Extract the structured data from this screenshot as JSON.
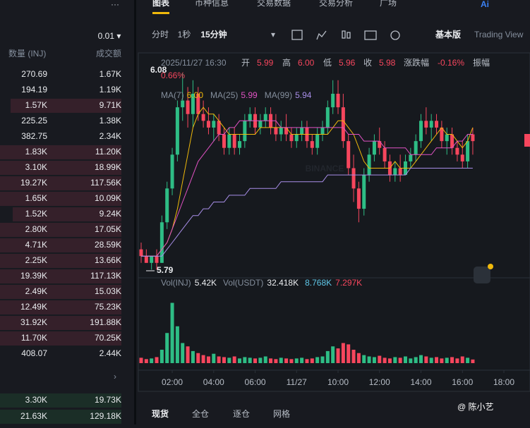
{
  "header": {
    "menu": "···",
    "tabs": [
      "图表",
      "币种信息",
      "交易数据",
      "交易分析",
      "广场"
    ],
    "ai": "Ai"
  },
  "toolbar": {
    "intervals": [
      "分时",
      "1秒",
      "15分钟"
    ],
    "dropdown": "▾",
    "modes": [
      "基本版",
      "Trading View"
    ]
  },
  "order_book": {
    "precision": "0.01 ▾",
    "columns": [
      "数量 (INJ)",
      "成交额"
    ],
    "asks": [
      [
        "270.69",
        "1.67K"
      ],
      [
        "194.19",
        "1.19K"
      ],
      [
        "1.57K",
        "9.71K"
      ],
      [
        "225.25",
        "1.38K"
      ],
      [
        "382.75",
        "2.34K"
      ],
      [
        "1.83K",
        "11.20K"
      ],
      [
        "3.10K",
        "18.99K"
      ],
      [
        "19.27K",
        "117.56K"
      ],
      [
        "1.65K",
        "10.09K"
      ],
      [
        "1.52K",
        "9.24K"
      ],
      [
        "2.80K",
        "17.05K"
      ],
      [
        "4.71K",
        "28.59K"
      ],
      [
        "2.25K",
        "13.66K"
      ],
      [
        "19.39K",
        "117.13K"
      ],
      [
        "2.49K",
        "15.03K"
      ],
      [
        "12.49K",
        "75.23K"
      ],
      [
        "31.92K",
        "191.88K"
      ],
      [
        "11.70K",
        "70.25K"
      ],
      [
        "408.07",
        "2.44K"
      ]
    ],
    "more": "›",
    "bids": [
      [
        "3.30K",
        "19.73K"
      ],
      [
        "21.63K",
        "129.18K"
      ]
    ]
  },
  "chart_data": {
    "type": "candlestick",
    "info": {
      "time": "2025/11/27 16:30",
      "open_label": "开",
      "open": "5.99",
      "high_label": "高",
      "high": "6.00",
      "low_label": "低",
      "low": "5.96",
      "close_label": "收",
      "close": "5.98",
      "change_label": "涨跌幅",
      "change": "-0.16%",
      "amp_label": "振幅",
      "amp": "0.66%"
    },
    "ma_legend": [
      {
        "name": "MA(7)",
        "value": "6.00",
        "color": "#f0b90b"
      },
      {
        "name": "MA(25)",
        "value": "5.99",
        "color": "#e052c3"
      },
      {
        "name": "MA(99)",
        "value": "5.94",
        "color": "#a88ee8"
      }
    ],
    "annotations": {
      "max": "6.08",
      "min": "5.79",
      "watermark": "BINANCE"
    },
    "x": [
      0.5,
      0.75,
      1,
      1.25,
      1.5,
      1.75,
      2,
      2.25,
      2.5,
      2.75,
      3,
      3.25,
      3.5,
      3.75,
      4,
      4.25,
      4.5,
      4.75,
      5,
      5.25,
      5.5,
      5.75,
      6,
      6.25,
      6.5,
      6.75,
      7,
      7.25,
      7.5,
      7.75,
      8,
      8.25,
      8.5,
      8.75,
      9,
      9.25,
      9.5,
      9.75,
      10,
      10.25,
      10.5,
      10.75,
      11,
      11.25,
      11.5,
      11.75,
      12,
      12.25,
      12.5,
      12.75,
      13,
      13.25,
      13.5,
      13.75,
      14,
      14.25,
      14.5,
      14.75,
      15,
      15.25,
      15.5,
      15.75,
      16,
      16.25,
      16.5
    ],
    "xlim": [
      0.33,
      19.26
    ],
    "xticks": [
      {
        "value": 2,
        "label": "02:00"
      },
      {
        "value": 4,
        "label": "04:00"
      },
      {
        "value": 6,
        "label": "06:00"
      },
      {
        "value": 8,
        "label": "11/27"
      },
      {
        "value": 10,
        "label": "10:00"
      },
      {
        "value": 12,
        "label": "12:00"
      },
      {
        "value": 14,
        "label": "14:00"
      },
      {
        "value": 16,
        "label": "16:00"
      },
      {
        "value": 18,
        "label": "18:00"
      }
    ],
    "ylim": [
      5.78,
      6.1
    ],
    "ohlc": [
      [
        5.82,
        5.83,
        5.8,
        5.81
      ],
      [
        5.81,
        5.82,
        5.8,
        5.8
      ],
      [
        5.8,
        5.81,
        5.79,
        5.81
      ],
      [
        5.81,
        5.82,
        5.79,
        5.8
      ],
      [
        5.8,
        5.87,
        5.8,
        5.86
      ],
      [
        5.86,
        5.92,
        5.85,
        5.91
      ],
      [
        5.91,
        5.97,
        5.9,
        5.96
      ],
      [
        5.96,
        6.04,
        5.95,
        6.03
      ],
      [
        6.03,
        6.08,
        6.01,
        6.04
      ],
      [
        6.04,
        6.06,
        6.0,
        6.02
      ],
      [
        6.02,
        6.07,
        6.0,
        6.05
      ],
      [
        6.05,
        6.06,
        6.01,
        6.02
      ],
      [
        6.02,
        6.04,
        6.0,
        6.01
      ],
      [
        6.01,
        6.03,
        5.99,
        6.0
      ],
      [
        6.0,
        6.02,
        5.98,
        6.01
      ],
      [
        6.01,
        6.02,
        5.98,
        5.99
      ],
      [
        5.99,
        6.0,
        5.96,
        5.97
      ],
      [
        5.97,
        6.0,
        5.96,
        5.99
      ],
      [
        5.99,
        6.0,
        5.96,
        5.97
      ],
      [
        5.97,
        5.99,
        5.96,
        5.98
      ],
      [
        5.98,
        6.02,
        5.97,
        6.01
      ],
      [
        6.01,
        6.03,
        6.0,
        6.02
      ],
      [
        6.02,
        6.03,
        5.99,
        6.0
      ],
      [
        6.0,
        6.02,
        5.99,
        6.01
      ],
      [
        6.01,
        6.03,
        6.0,
        6.02
      ],
      [
        6.02,
        6.03,
        5.99,
        6.0
      ],
      [
        6.0,
        6.02,
        5.98,
        5.99
      ],
      [
        5.99,
        6.01,
        5.98,
        6.0
      ],
      [
        6.0,
        6.02,
        5.98,
        5.99
      ],
      [
        5.99,
        6.0,
        5.97,
        5.98
      ],
      [
        5.98,
        6.0,
        5.97,
        5.99
      ],
      [
        5.99,
        6.01,
        5.98,
        6.0
      ],
      [
        6.0,
        6.01,
        5.97,
        5.98
      ],
      [
        5.98,
        5.99,
        5.96,
        5.97
      ],
      [
        5.97,
        6.0,
        5.96,
        5.99
      ],
      [
        5.99,
        6.01,
        5.98,
        6.0
      ],
      [
        6.0,
        6.04,
        5.99,
        6.03
      ],
      [
        6.03,
        6.07,
        6.02,
        6.05
      ],
      [
        6.05,
        6.07,
        6.02,
        6.03
      ],
      [
        6.03,
        6.05,
        5.97,
        5.98
      ],
      [
        5.98,
        5.99,
        5.93,
        5.94
      ],
      [
        5.94,
        5.96,
        5.89,
        5.91
      ],
      [
        5.91,
        5.92,
        5.86,
        5.88
      ],
      [
        5.88,
        5.94,
        5.87,
        5.93
      ],
      [
        5.93,
        5.97,
        5.92,
        5.96
      ],
      [
        5.96,
        5.99,
        5.95,
        5.98
      ],
      [
        5.98,
        6.0,
        5.96,
        5.97
      ],
      [
        5.97,
        5.98,
        5.94,
        5.95
      ],
      [
        5.95,
        5.96,
        5.92,
        5.93
      ],
      [
        5.93,
        5.95,
        5.92,
        5.94
      ],
      [
        5.94,
        5.96,
        5.92,
        5.93
      ],
      [
        5.93,
        5.96,
        5.93,
        5.95
      ],
      [
        5.95,
        5.97,
        5.94,
        5.96
      ],
      [
        5.96,
        5.99,
        5.95,
        5.98
      ],
      [
        5.98,
        6.02,
        5.97,
        6.01
      ],
      [
        6.01,
        6.03,
        5.99,
        6.0
      ],
      [
        6.0,
        6.02,
        5.98,
        6.01
      ],
      [
        6.01,
        6.02,
        5.99,
        6.0
      ],
      [
        6.0,
        6.01,
        5.97,
        5.98
      ],
      [
        5.98,
        6.0,
        5.96,
        5.99
      ],
      [
        5.99,
        6.0,
        5.96,
        5.97
      ],
      [
        5.97,
        5.98,
        5.95,
        5.96
      ],
      [
        5.96,
        5.98,
        5.94,
        5.95
      ],
      [
        5.95,
        5.99,
        5.94,
        5.98
      ],
      [
        5.99,
        6.0,
        5.96,
        5.98
      ]
    ],
    "ma": [
      {
        "color": "#f0b90b",
        "values": [
          5.81,
          5.81,
          5.81,
          5.81,
          5.82,
          5.83,
          5.85,
          5.88,
          5.92,
          5.96,
          6.0,
          6.02,
          6.03,
          6.02,
          6.02,
          6.01,
          6.0,
          5.99,
          5.99,
          5.99,
          5.99,
          5.99,
          5.99,
          6.0,
          6.0,
          6.0,
          6.0,
          6.0,
          6.0,
          5.99,
          5.99,
          5.99,
          5.99,
          5.99,
          5.99,
          5.99,
          5.99,
          6.0,
          6.01,
          6.01,
          6.0,
          5.99,
          5.97,
          5.95,
          5.94,
          5.94,
          5.94,
          5.94,
          5.94,
          5.95,
          5.94,
          5.94,
          5.94,
          5.95,
          5.96,
          5.97,
          5.98,
          5.99,
          6.0,
          5.99,
          5.99,
          5.98,
          5.97,
          5.98,
          6.0
        ]
      },
      {
        "color": "#e052c3",
        "values": [
          5.81,
          5.81,
          5.81,
          5.81,
          5.82,
          5.83,
          5.85,
          5.87,
          5.89,
          5.91,
          5.93,
          5.95,
          5.96,
          5.97,
          5.98,
          5.99,
          5.99,
          6.0,
          6.0,
          6.01,
          6.01,
          6.01,
          6.01,
          6.01,
          6.01,
          6.01,
          6.01,
          6.0,
          6.0,
          6.0,
          6.0,
          6.0,
          6.0,
          6.0,
          6.0,
          6.0,
          6.0,
          6.0,
          6.0,
          6.0,
          5.99,
          5.99,
          5.99,
          5.98,
          5.98,
          5.98,
          5.98,
          5.97,
          5.97,
          5.97,
          5.97,
          5.97,
          5.96,
          5.96,
          5.96,
          5.96,
          5.96,
          5.97,
          5.97,
          5.97,
          5.97,
          5.98,
          5.98,
          5.99,
          5.99
        ]
      },
      {
        "color": "#a88ee8",
        "values": [
          5.81,
          5.81,
          5.81,
          5.81,
          5.81,
          5.82,
          5.83,
          5.84,
          5.85,
          5.86,
          5.87,
          5.87,
          5.88,
          5.88,
          5.89,
          5.89,
          5.89,
          5.9,
          5.9,
          5.9,
          5.9,
          5.91,
          5.91,
          5.91,
          5.91,
          5.91,
          5.91,
          5.92,
          5.92,
          5.92,
          5.92,
          5.92,
          5.92,
          5.92,
          5.92,
          5.92,
          5.93,
          5.93,
          5.93,
          5.93,
          5.93,
          5.93,
          5.93,
          5.93,
          5.93,
          5.93,
          5.93,
          5.93,
          5.93,
          5.93,
          5.93,
          5.93,
          5.94,
          5.94,
          5.94,
          5.94,
          5.94,
          5.94,
          5.94,
          5.94,
          5.94,
          5.94,
          5.94,
          5.94,
          5.94
        ]
      }
    ],
    "volume": {
      "legend": [
        "Vol(INJ)",
        "5.42K",
        "Vol(USDT)",
        "32.418K",
        "8.768K",
        "7.297K"
      ],
      "ylim": [
        0,
        100
      ],
      "values": [
        8,
        6,
        7,
        9,
        20,
        45,
        90,
        55,
        30,
        25,
        18,
        15,
        12,
        10,
        14,
        10,
        9,
        8,
        10,
        7,
        9,
        8,
        7,
        8,
        10,
        7,
        6,
        8,
        7,
        6,
        7,
        8,
        6,
        7,
        9,
        10,
        18,
        25,
        22,
        30,
        28,
        20,
        15,
        12,
        10,
        9,
        11,
        8,
        7,
        9,
        8,
        10,
        7,
        9,
        12,
        10,
        8,
        9,
        7,
        8,
        9,
        7,
        10,
        8,
        5.42
      ]
    },
    "up_color": "#2ebd85",
    "down_color": "#f6465d"
  },
  "footer": {
    "tabs": [
      "现货",
      "全仓",
      "逐仓",
      "网格"
    ],
    "watermark": "@ 陈小艺"
  }
}
